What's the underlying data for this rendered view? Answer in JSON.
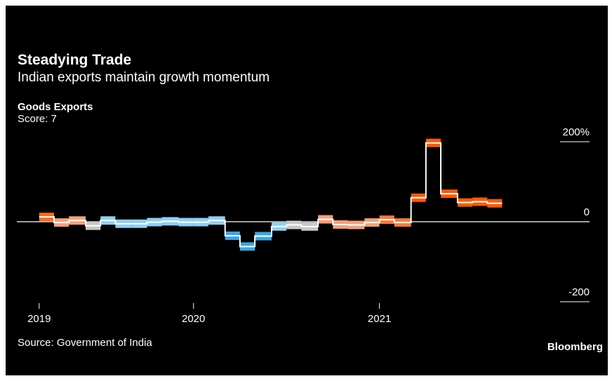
{
  "chart_data": {
    "type": "step",
    "title": "Steadying Trade",
    "subtitle": "Indian exports maintain growth momentum",
    "series_title": "Goods Exports",
    "score": "Score: 7",
    "source": "Source: Government of India",
    "brand": "Bloomberg",
    "x": [
      2019.17,
      2019.25,
      2019.33,
      2019.42,
      2019.5,
      2019.58,
      2019.67,
      2019.75,
      2019.83,
      2019.92,
      2020.0,
      2020.08,
      2020.17,
      2020.25,
      2020.33,
      2020.42,
      2020.5,
      2020.58,
      2020.67,
      2020.75,
      2020.83,
      2020.92,
      2021.0,
      2021.08,
      2021.17,
      2021.25,
      2021.33,
      2021.42,
      2021.5,
      2021.58
    ],
    "values": [
      12,
      -2,
      3,
      -10,
      3,
      -5,
      -5,
      -1,
      1,
      -1,
      -1,
      3,
      -35,
      -62,
      -36,
      -12,
      -8,
      -12,
      6,
      -7,
      -8,
      -2,
      5,
      -2,
      60,
      197,
      70,
      48,
      50,
      46
    ],
    "colors": [
      "#ff6a1a",
      "#f6a07a",
      "#f6a07a",
      "#c8c8c8",
      "#8fd0f5",
      "#8fd0f5",
      "#8fd0f5",
      "#8fd0f5",
      "#8fd0f5",
      "#8fd0f5",
      "#8fd0f5",
      "#8fd0f5",
      "#3aa6e8",
      "#3aa6e8",
      "#3aa6e8",
      "#8fd0f5",
      "#c8c8c8",
      "#c8c8c8",
      "#f6a07a",
      "#f6a07a",
      "#f6a07a",
      "#f6a07a",
      "#ff7a3a",
      "#ff7a3a",
      "#ff5a00",
      "#ff5a00",
      "#ff5a00",
      "#ff5a00",
      "#ff5a00",
      "#ff5a00"
    ],
    "xlim": [
      2019.05,
      2022.13
    ],
    "xticks": [
      {
        "value": 2019.17,
        "label": "2019"
      },
      2020,
      2021
    ],
    "ylim": [
      -200,
      200
    ],
    "yticks": [
      {
        "value": -200,
        "label": "-200"
      },
      0,
      {
        "value": 200,
        "label": "200%"
      }
    ]
  }
}
